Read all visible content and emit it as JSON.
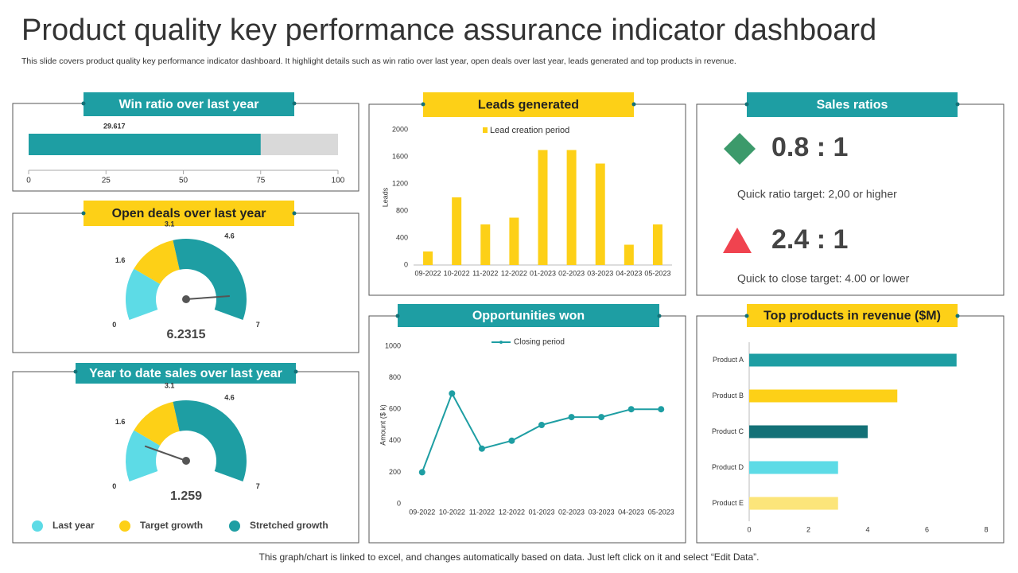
{
  "title": "Product quality key performance assurance indicator dashboard",
  "subtitle": "This slide covers product quality key performance indicator dashboard. It highlight details such as win ratio over last year, open deals over last year, leads generated and top products in revenue.",
  "footer": "This graph/chart is linked to excel, and changes automatically based on data. Just left click on it and select “Edit Data”.",
  "sales_ratios": {
    "title": "Sales ratios",
    "items": [
      {
        "ratio": "0.8 : 1",
        "target": "Quick ratio target: 2,00 or higher",
        "color": "#3c9a6b"
      },
      {
        "ratio": "2.4 : 1",
        "target": "Quick to close target: 4.00 or lower",
        "color": "#f0434f"
      }
    ]
  },
  "chart_data": [
    {
      "type": "progress",
      "title": "Win ratio over last year",
      "values": [
        75
      ],
      "annotation": "29.617",
      "color": "#1e9ea3",
      "track_color": "#d9d9d9",
      "xlim": [
        0,
        100
      ],
      "xticks": [
        0,
        25,
        50,
        75,
        100
      ]
    },
    {
      "type": "gauge",
      "title": "Open deals over last year",
      "value": 6.2315,
      "ylim": [
        0,
        7
      ],
      "yticks": [
        0,
        1.6,
        3.1,
        4.6,
        7
      ],
      "series": [
        {
          "color": "#5ddbe6",
          "values": [
            1.6
          ]
        },
        {
          "color": "#fdd017",
          "values": [
            1.5
          ]
        },
        {
          "color": "#1e9ea3",
          "values": [
            3.9
          ]
        }
      ]
    },
    {
      "type": "gauge",
      "title": "Year to date sales over last year",
      "value": 1.259,
      "ylim": [
        0,
        7
      ],
      "yticks": [
        0,
        1.6,
        3.1,
        4.6,
        7
      ],
      "series": [
        {
          "name": "Last year",
          "color": "#5ddbe6",
          "values": [
            1.6
          ]
        },
        {
          "name": "Target growth",
          "color": "#fdd017",
          "values": [
            1.5
          ]
        },
        {
          "name": "Stretched growth",
          "color": "#1e9ea3",
          "values": [
            3.9
          ]
        }
      ]
    },
    {
      "type": "bar",
      "title": "Leads generated",
      "ylabel": "Leads",
      "categories": [
        "09-2022",
        "10-2022",
        "11-2022",
        "12-2022",
        "01-2023",
        "02-2023",
        "03-2023",
        "04-2023",
        "05-2023"
      ],
      "series": [
        {
          "name": "Lead creation period",
          "color": "#fdd017",
          "values": [
            200,
            1000,
            600,
            700,
            1700,
            1700,
            1500,
            300,
            600
          ]
        }
      ],
      "ylim": [
        0,
        2000
      ],
      "yticks": [
        0,
        400,
        800,
        1200,
        1600,
        2000
      ]
    },
    {
      "type": "line",
      "title": "Opportunities won",
      "ylabel": "Amount ($ k)",
      "categories": [
        "09-2022",
        "10-2022",
        "11-2022",
        "12-2022",
        "01-2023",
        "02-2023",
        "03-2023",
        "04-2023",
        "05-2023"
      ],
      "series": [
        {
          "name": "Closing period",
          "color": "#1e9ea3",
          "values": [
            200,
            700,
            350,
            400,
            500,
            550,
            550,
            600,
            600
          ]
        }
      ],
      "ylim": [
        0,
        1000
      ],
      "yticks": [
        0,
        200,
        400,
        600,
        800,
        1000
      ]
    },
    {
      "type": "hbar",
      "title": "Top products in revenue ($M)",
      "categories": [
        "Product A",
        "Product B",
        "Product C",
        "Product D",
        "Product E"
      ],
      "values": [
        7,
        5,
        4,
        3,
        3
      ],
      "colors": [
        "#1e9ea3",
        "#fdd017",
        "#137177",
        "#5ddbe6",
        "#fce57a"
      ],
      "xlim": [
        0,
        8
      ],
      "xticks": [
        0,
        2,
        4,
        6,
        8
      ]
    }
  ]
}
